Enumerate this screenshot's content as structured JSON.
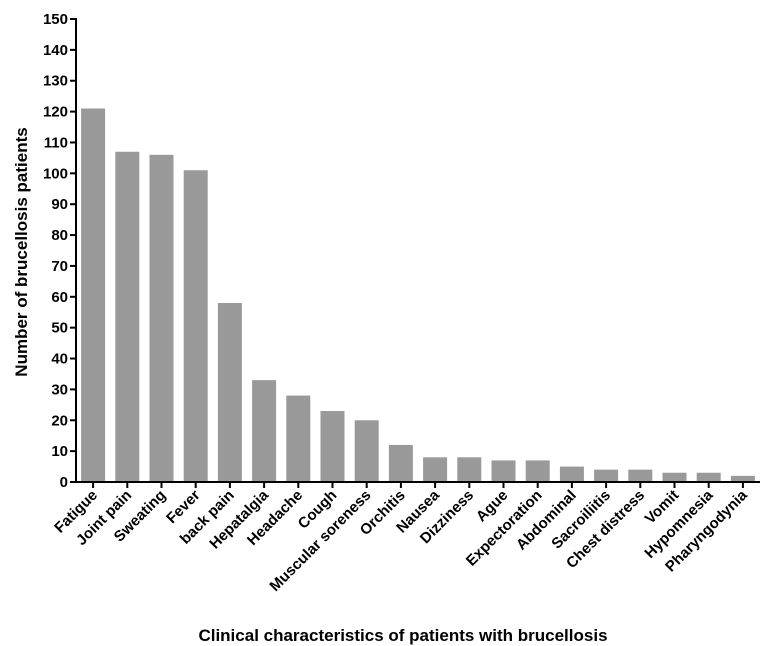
{
  "chart_data": {
    "type": "bar",
    "title": "",
    "xlabel": "Clinical characteristics of patients with brucellosis",
    "ylabel": "Number of brucellosis patients",
    "ylim": [
      0,
      150
    ],
    "yticks": [
      0,
      10,
      20,
      30,
      40,
      50,
      60,
      70,
      80,
      90,
      100,
      110,
      120,
      130,
      140,
      150
    ],
    "grid": false,
    "legend": "none",
    "bar_color": "#999999",
    "axis_color": "#000000",
    "categories": [
      "Fatigue",
      "Joint pain",
      "Sweating",
      "Fever",
      "back pain",
      "Hepatalgia",
      "Headache",
      "Cough",
      "Muscular soreness",
      "Orchitis",
      "Nausea",
      "Dizziness",
      "Ague",
      "Expectoration",
      "Abdominal",
      "Sacroiliitis",
      "Chest distress",
      "Vomit",
      "Hypomnesia",
      "Pharyngodynia"
    ],
    "values": [
      121,
      107,
      106,
      101,
      58,
      33,
      28,
      23,
      20,
      12,
      8,
      8,
      7,
      7,
      5,
      4,
      4,
      3,
      3,
      2
    ]
  }
}
